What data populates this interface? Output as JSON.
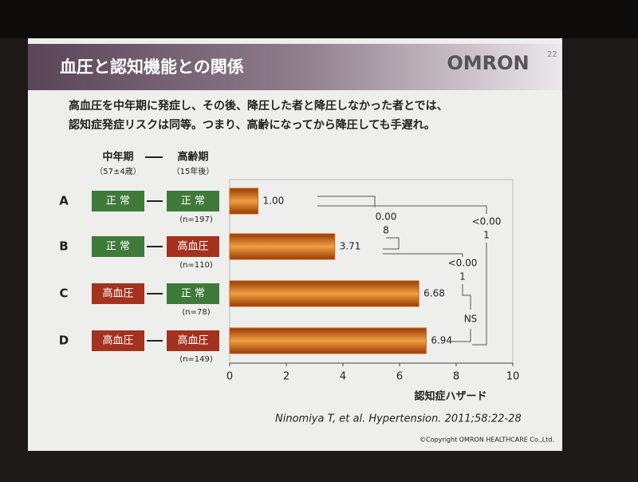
{
  "slide": {
    "title": "血圧と認知機能との関係",
    "logo": "OMRON",
    "page_number": "22",
    "description": [
      "高血圧を中年期に発症し、その後、降圧した者と降圧しなかった者とでは、",
      "認知症発症リスクは同等。つまり、高齢になってから降圧しても手遅れ。"
    ],
    "citation": "Ninomiya T, et al. Hypertension. 2011;58:22-28",
    "copyright": "©Copyright OMRON HEALTHCARE Co.,Ltd."
  },
  "chart_data": {
    "type": "bar",
    "orientation": "horizontal",
    "categories": [
      "A",
      "B",
      "C",
      "D"
    ],
    "values": [
      1.0,
      3.71,
      6.68,
      6.94
    ],
    "value_labels": [
      "1.00",
      "3.71",
      "6.68",
      "6.94"
    ],
    "color": "#c8620c",
    "xlim": [
      0,
      10
    ],
    "xticks": [
      0,
      2,
      4,
      6,
      8,
      10
    ],
    "x_label": "認知症ハザード",
    "column_headers": [
      {
        "label": "中年期",
        "sub": "（57±4歳）"
      },
      {
        "label": "高齢期",
        "sub": "（15年後）"
      }
    ],
    "groups": [
      {
        "from": "正 常",
        "to": "正 常",
        "n": "(n=197)"
      },
      {
        "from": "正 常",
        "to": "高血圧",
        "n": "(n=110)"
      },
      {
        "from": "高血圧",
        "to": "正 常",
        "n": "(n=78)"
      },
      {
        "from": "高血圧",
        "to": "高血圧",
        "n": "(n=149)"
      }
    ],
    "comparisons": [
      {
        "lines": [
          "0.00",
          "8"
        ]
      },
      {
        "lines": [
          "<0.00",
          "1"
        ]
      },
      {
        "lines": [
          "<0.00",
          "1"
        ]
      },
      {
        "lines": [
          "NS"
        ]
      }
    ]
  }
}
